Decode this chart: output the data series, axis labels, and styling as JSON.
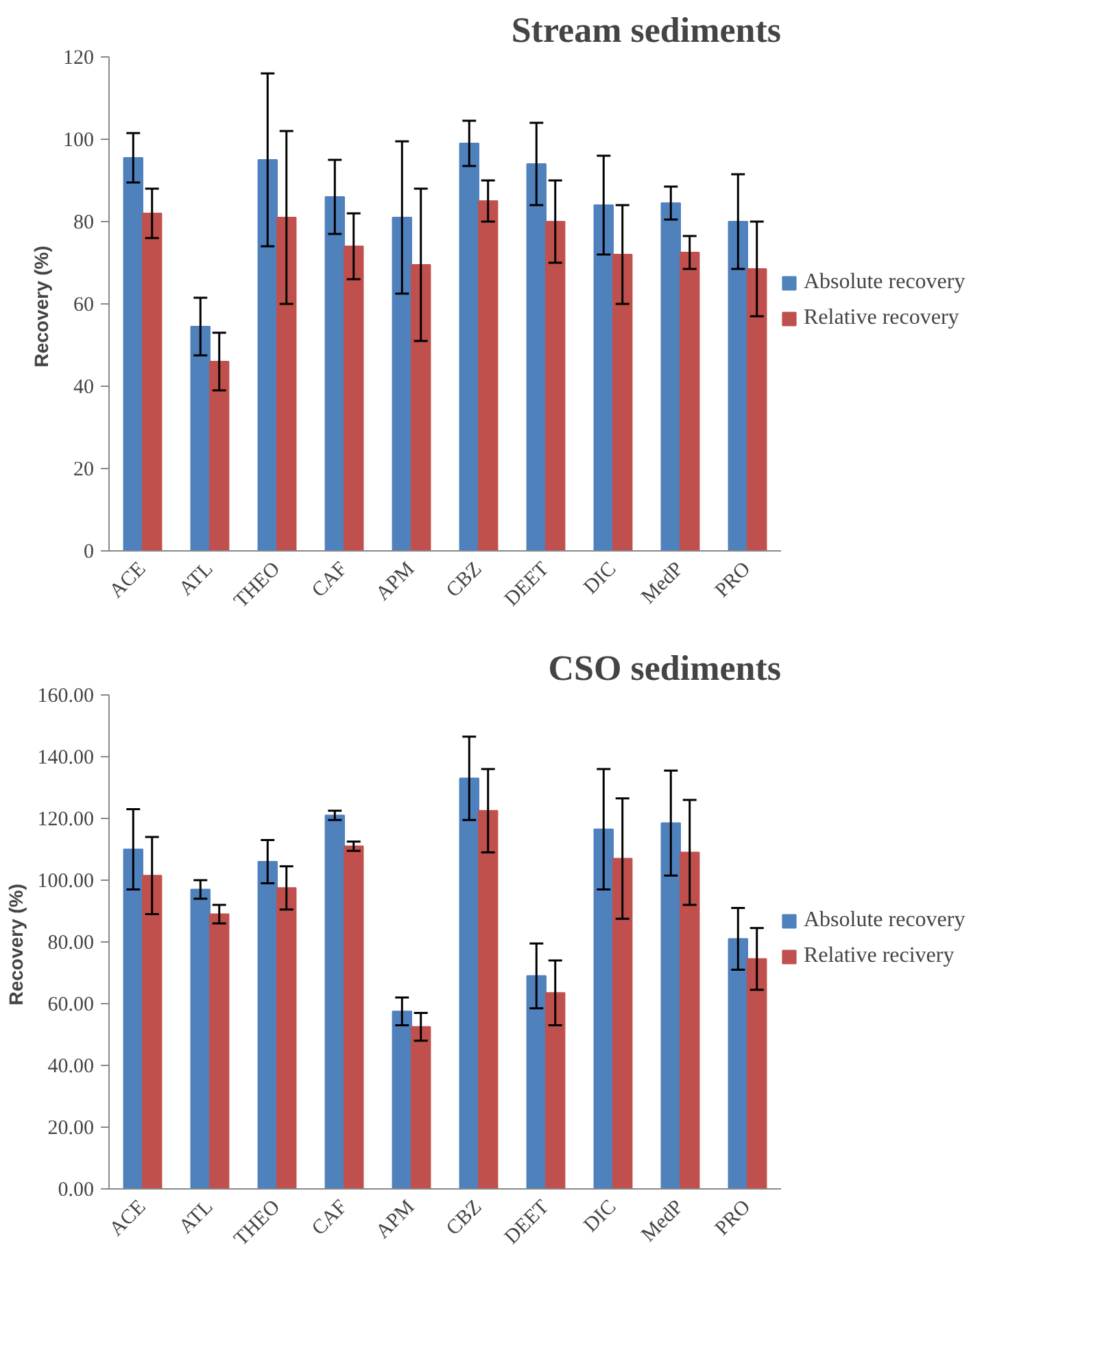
{
  "chart_data": [
    {
      "type": "bar",
      "title": "Stream sediments",
      "ylabel": "Recovery  (%)",
      "categories": [
        "ACE",
        "ATL",
        "THEO",
        "CAF",
        "APM",
        "CBZ",
        "DEET",
        "DIC",
        "MedP",
        "PRO"
      ],
      "series": [
        {
          "name": "Absolute recovery",
          "color": "#4f81bd",
          "values": [
            95.5,
            54.5,
            95,
            86,
            81,
            99,
            94,
            84,
            84.5,
            80
          ],
          "errors": [
            6,
            7,
            21,
            9,
            18.5,
            5.5,
            10,
            12,
            4,
            11.5
          ]
        },
        {
          "name": "Relative recovery",
          "color": "#c0504d",
          "values": [
            82,
            46,
            81,
            74,
            69.5,
            85,
            80,
            72,
            72.5,
            68.5
          ],
          "errors": [
            6,
            7,
            21,
            8,
            18.5,
            5,
            10,
            12,
            4,
            11.5
          ]
        }
      ],
      "ylim": [
        0,
        120
      ],
      "yticks": [
        0,
        20,
        40,
        60,
        80,
        100,
        120
      ],
      "grid": false,
      "legend": "right"
    },
    {
      "type": "bar",
      "title": "CSO sediments",
      "ylabel": "Recovery  (%)",
      "categories": [
        "ACE",
        "ATL",
        "THEO",
        "CAF",
        "APM",
        "CBZ",
        "DEET",
        "DIC",
        "MedP",
        "PRO"
      ],
      "series": [
        {
          "name": "Absolute recovery",
          "color": "#4f81bd",
          "values": [
            110,
            97,
            106,
            121,
            57.5,
            133,
            69,
            116.5,
            118.5,
            81
          ],
          "errors": [
            13,
            3,
            7,
            1.5,
            4.5,
            13.5,
            10.5,
            19.5,
            17,
            10
          ]
        },
        {
          "name": "Relative recivery",
          "color": "#c0504d",
          "values": [
            101.5,
            89,
            97.5,
            111,
            52.5,
            122.5,
            63.5,
            107,
            109,
            74.5
          ],
          "errors": [
            12.5,
            3,
            7,
            1.5,
            4.5,
            13.5,
            10.5,
            19.5,
            17,
            10
          ]
        }
      ],
      "ylim": [
        0,
        160
      ],
      "yticks": [
        {
          "value": 0,
          "label": "0.00"
        },
        {
          "value": 20,
          "label": "20.00"
        },
        {
          "value": 40,
          "label": "40.00"
        },
        {
          "value": 60,
          "label": "60.00"
        },
        {
          "value": 80,
          "label": "80.00"
        },
        {
          "value": 100,
          "label": "100.00"
        },
        {
          "value": 120,
          "label": "120.00"
        },
        {
          "value": 140,
          "label": "140.00"
        },
        {
          "value": 160,
          "label": "160.00"
        }
      ],
      "grid": false,
      "legend": "right"
    }
  ]
}
